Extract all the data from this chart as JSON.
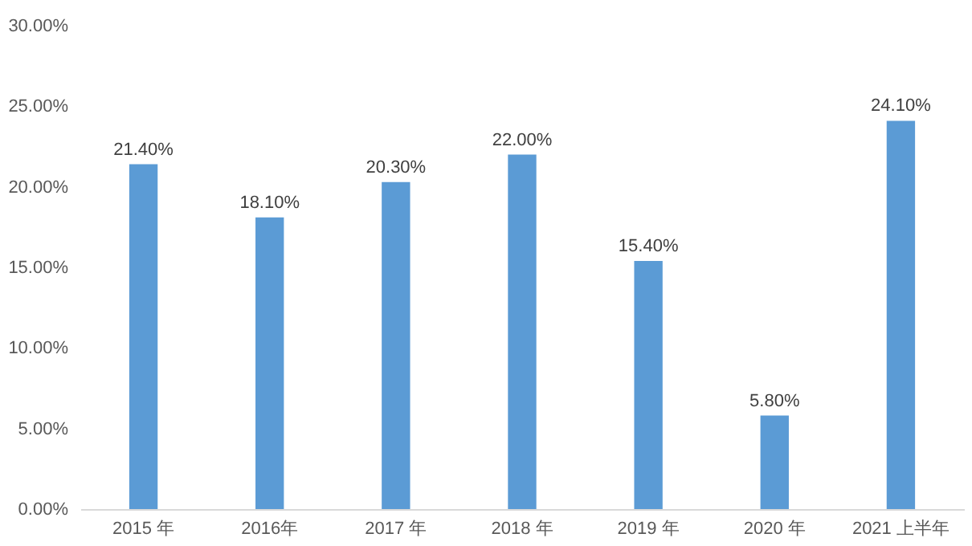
{
  "chart_data": {
    "type": "bar",
    "categories": [
      "2015 年",
      "2016年",
      "2017 年",
      "2018 年",
      "2019 年",
      "2020 年",
      "2021 上半年"
    ],
    "values": [
      21.4,
      18.1,
      20.3,
      22.0,
      15.4,
      5.8,
      24.1
    ],
    "value_labels": [
      "21.40%",
      "18.10%",
      "20.30%",
      "22.00%",
      "15.40%",
      "5.80%",
      "24.10%"
    ],
    "color": "#5b9bd5",
    "ylim": [
      0,
      30
    ],
    "yticks": [
      {
        "value": 0,
        "label": "0.00%"
      },
      {
        "value": 5,
        "label": "5.00%"
      },
      {
        "value": 10,
        "label": "10.00%"
      },
      {
        "value": 15,
        "label": "15.00%"
      },
      {
        "value": 20,
        "label": "20.00%"
      },
      {
        "value": 25,
        "label": "25.00%"
      },
      {
        "value": 30,
        "label": "30.00%"
      }
    ],
    "grid": false
  }
}
